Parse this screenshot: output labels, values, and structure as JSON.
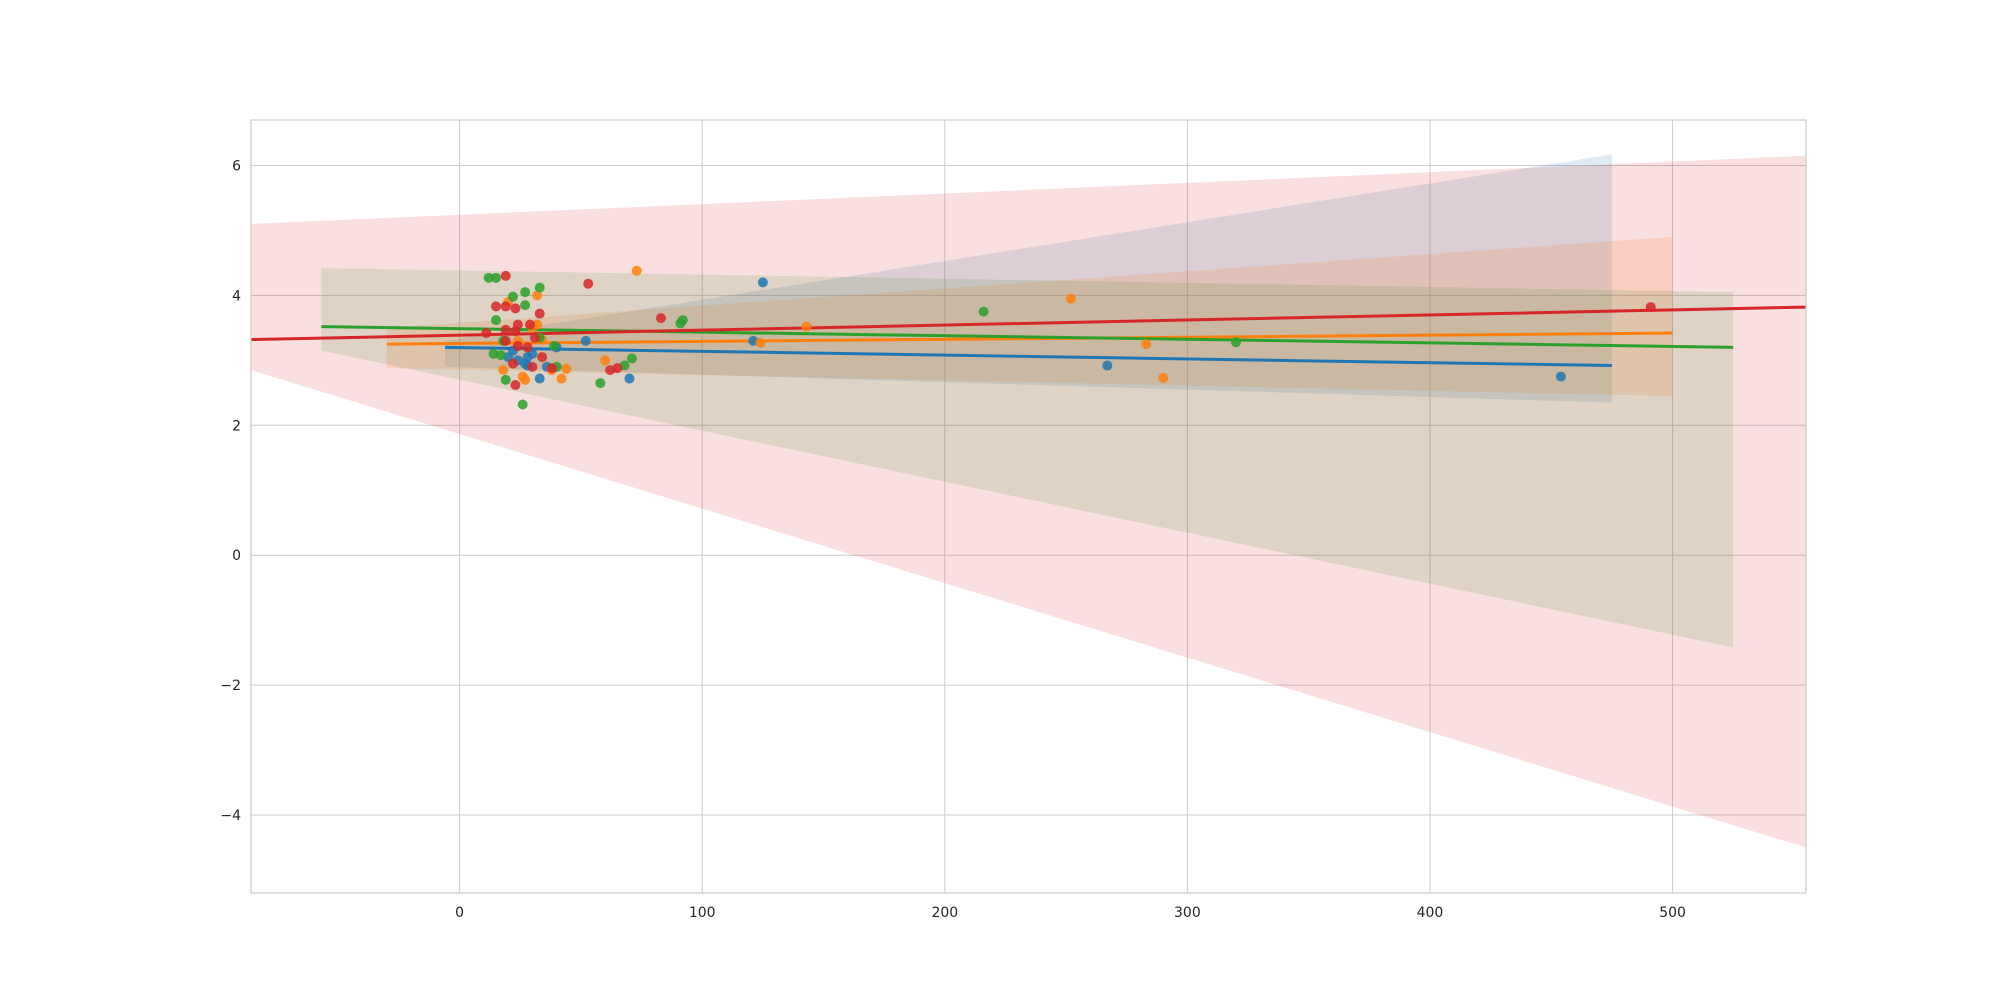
{
  "chart_data": {
    "type": "scatter",
    "title": "",
    "xlabel": "",
    "ylabel": "",
    "xlim": [
      -86,
      555
    ],
    "ylim": [
      -5.2,
      6.7
    ],
    "grid": true,
    "legend": "none",
    "x_ticks": [
      {
        "value": 0,
        "label": "0"
      },
      {
        "value": 100,
        "label": "100"
      },
      {
        "value": 200,
        "label": "200"
      },
      {
        "value": 300,
        "label": "300"
      },
      {
        "value": 400,
        "label": "400"
      },
      {
        "value": 500,
        "label": "500"
      }
    ],
    "y_ticks": [
      {
        "value": -4,
        "label": "−4"
      },
      {
        "value": -2,
        "label": "−2"
      },
      {
        "value": 0,
        "label": "0"
      },
      {
        "value": 2,
        "label": "2"
      },
      {
        "value": 4,
        "label": "4"
      },
      {
        "value": 6,
        "label": "6"
      }
    ],
    "series": [
      {
        "color": "#1f77b4",
        "points": [
          [
            125,
            4.2
          ],
          [
            267,
            2.92
          ],
          [
            454,
            2.75
          ],
          [
            70,
            2.72
          ],
          [
            33,
            2.72
          ],
          [
            27,
            2.95
          ],
          [
            28,
            3.05
          ],
          [
            24,
            3.0
          ],
          [
            30,
            3.1
          ],
          [
            40,
            3.2
          ],
          [
            52,
            3.3
          ],
          [
            22,
            3.15
          ],
          [
            36,
            2.9
          ],
          [
            28,
            2.92
          ],
          [
            20,
            3.05
          ],
          [
            121,
            3.3
          ]
        ],
        "fit": {
          "x": [
            -6,
            475
          ],
          "y": [
            3.2,
            2.92
          ]
        },
        "band": {
          "upper": [
            3.3,
            6.17
          ],
          "lower": [
            2.9,
            2.35
          ]
        }
      },
      {
        "color": "#ff7f0e",
        "points": [
          [
            73,
            4.38
          ],
          [
            252,
            3.95
          ],
          [
            143,
            3.52
          ],
          [
            283,
            3.25
          ],
          [
            290,
            2.73
          ],
          [
            124,
            3.27
          ],
          [
            60,
            3.0
          ],
          [
            44,
            2.87
          ],
          [
            42,
            2.72
          ],
          [
            27,
            2.7
          ],
          [
            32,
            3.55
          ],
          [
            32,
            4.0
          ],
          [
            20,
            3.9
          ],
          [
            18,
            2.85
          ],
          [
            24,
            3.3
          ],
          [
            30,
            3.5
          ],
          [
            26,
            2.75
          ],
          [
            38,
            2.85
          ],
          [
            34,
            3.32
          ]
        ],
        "fit": {
          "x": [
            -30,
            500
          ],
          "y": [
            3.25,
            3.42
          ]
        },
        "band": {
          "upper": [
            3.5,
            4.9
          ],
          "lower": [
            2.88,
            2.45
          ]
        }
      },
      {
        "color": "#2ca02c",
        "points": [
          [
            12,
            4.27
          ],
          [
            15,
            4.27
          ],
          [
            33,
            4.12
          ],
          [
            27,
            4.05
          ],
          [
            22,
            3.98
          ],
          [
            27,
            3.85
          ],
          [
            15,
            3.62
          ],
          [
            92,
            3.62
          ],
          [
            91,
            3.57
          ],
          [
            216,
            3.75
          ],
          [
            320,
            3.28
          ],
          [
            18,
            3.3
          ],
          [
            14,
            3.1
          ],
          [
            17,
            3.08
          ],
          [
            39,
            3.22
          ],
          [
            58,
            2.65
          ],
          [
            71,
            3.03
          ],
          [
            68,
            2.92
          ],
          [
            26,
            2.32
          ],
          [
            19,
            2.7
          ],
          [
            40,
            2.9
          ],
          [
            33,
            3.35
          ]
        ],
        "fit": {
          "x": [
            -57,
            525
          ],
          "y": [
            3.52,
            3.2
          ]
        },
        "band": {
          "upper": [
            4.42,
            4.05
          ],
          "lower": [
            3.15,
            -1.42
          ]
        }
      },
      {
        "color": "#d62728",
        "points": [
          [
            19,
            4.3
          ],
          [
            53,
            4.18
          ],
          [
            15,
            3.83
          ],
          [
            19,
            3.83
          ],
          [
            23,
            3.8
          ],
          [
            33,
            3.72
          ],
          [
            83,
            3.65
          ],
          [
            491,
            3.82
          ],
          [
            24,
            3.55
          ],
          [
            29,
            3.55
          ],
          [
            23,
            3.45
          ],
          [
            11,
            3.42
          ],
          [
            19,
            3.47
          ],
          [
            31,
            3.35
          ],
          [
            19,
            3.3
          ],
          [
            24,
            3.22
          ],
          [
            34,
            3.05
          ],
          [
            22,
            2.95
          ],
          [
            65,
            2.88
          ],
          [
            62,
            2.85
          ],
          [
            30,
            2.9
          ],
          [
            38,
            2.88
          ],
          [
            23,
            2.62
          ],
          [
            28,
            3.2
          ]
        ],
        "fit": {
          "x": [
            -86,
            555
          ],
          "y": [
            3.32,
            3.82
          ]
        },
        "band": {
          "upper": [
            5.1,
            6.15
          ],
          "lower": [
            2.85,
            -4.5
          ]
        }
      }
    ]
  }
}
